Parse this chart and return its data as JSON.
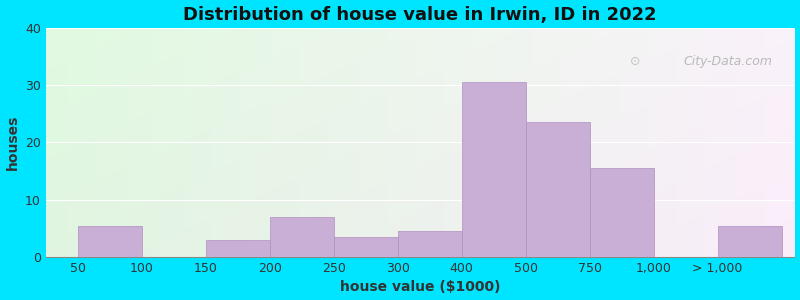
{
  "title": "Distribution of house value in Irwin, ID in 2022",
  "xlabel": "house value ($1000)",
  "ylabel": "houses",
  "bar_color": "#c9aed6",
  "bar_edge_color": "#b090c0",
  "background_outer": "#00e5ff",
  "ylim": [
    0,
    40
  ],
  "yticks": [
    0,
    10,
    20,
    30,
    40
  ],
  "tick_positions": [
    0,
    1,
    2,
    3,
    4,
    5,
    6,
    7,
    8,
    9,
    10
  ],
  "tick_labels": [
    "50",
    "100",
    "150",
    "200",
    "250",
    "300",
    "400",
    "500",
    "750",
    "1,000",
    "> 1,000"
  ],
  "bar_lefts": [
    0,
    1,
    2,
    3,
    4,
    5,
    6,
    7,
    8,
    10
  ],
  "bar_rights": [
    1,
    2,
    3,
    4,
    5,
    6,
    7,
    8,
    9,
    11
  ],
  "values": [
    5.5,
    0,
    3,
    7,
    3.5,
    4.5,
    30.5,
    23.5,
    15.5,
    5.5
  ],
  "title_fontsize": 13,
  "label_fontsize": 10,
  "tick_fontsize": 9,
  "watermark_text": "City-Data.com"
}
